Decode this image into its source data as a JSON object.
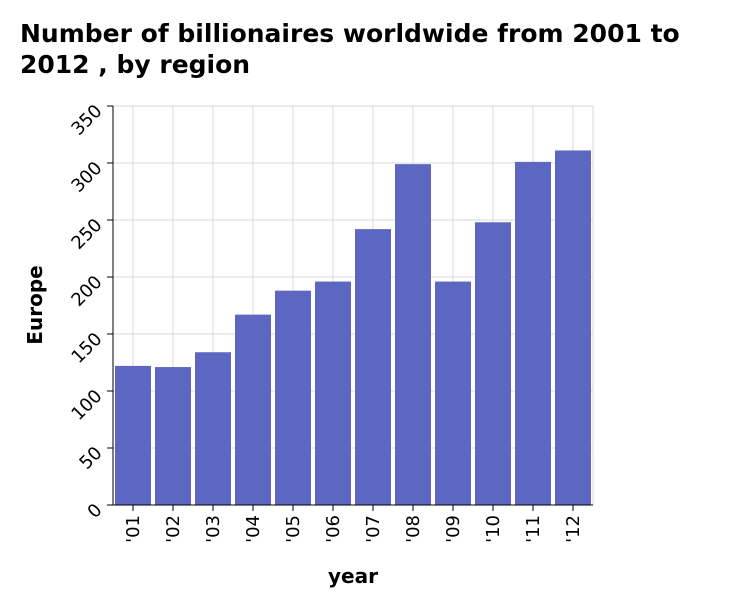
{
  "chart_data": {
    "type": "bar",
    "title": "Number of billionaires worldwide from 2001 to 2012 , by region",
    "xlabel": "year",
    "ylabel": "Europe",
    "categories": [
      "'01",
      "'02",
      "'03",
      "'04",
      "'05",
      "'06",
      "'07",
      "'08",
      "'09",
      "'10",
      "'11",
      "'12"
    ],
    "series": [
      {
        "values": [
          122,
          121,
          134,
          167,
          188,
          196,
          242,
          299,
          196,
          248,
          301,
          311
        ]
      }
    ],
    "ylim": [
      0,
      350
    ],
    "yticks": [
      0,
      50,
      100,
      150,
      200,
      250,
      300,
      350
    ],
    "grid": true,
    "bar_color": "#5b67c0",
    "grid_color": "#d9d9d9"
  }
}
